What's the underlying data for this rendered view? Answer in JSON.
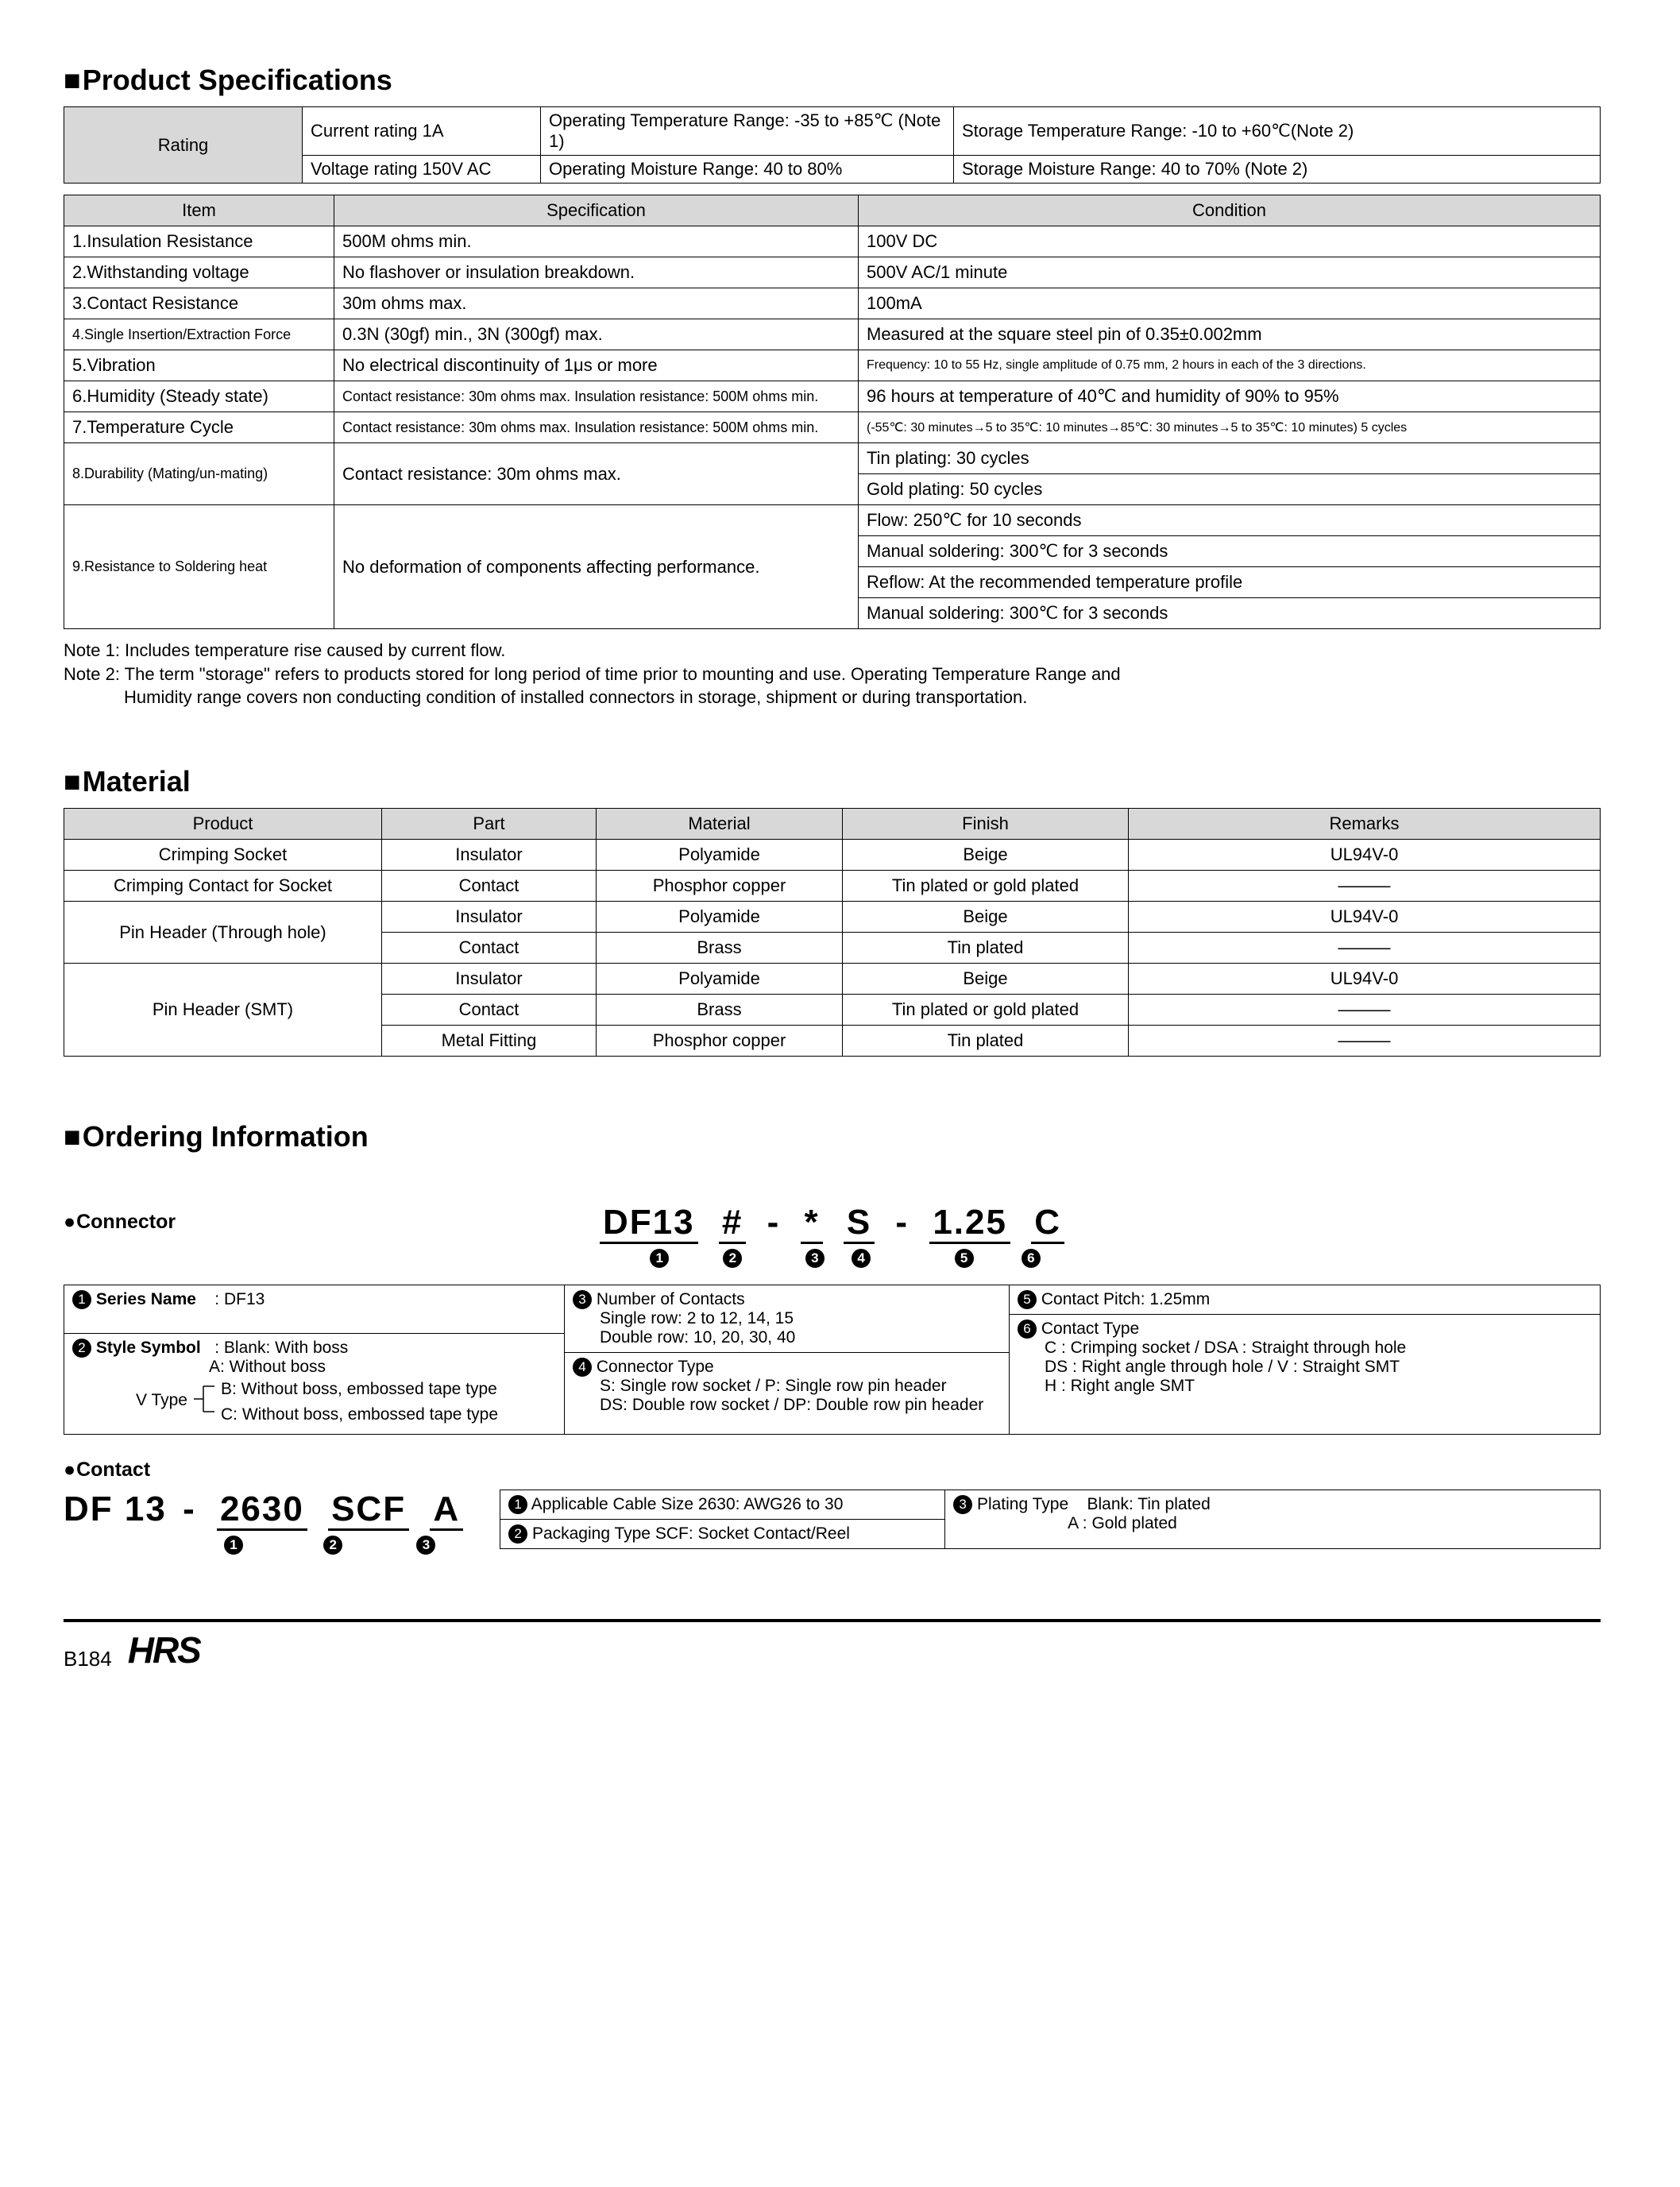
{
  "sections": {
    "spec_title": "Product Specifications",
    "material_title": "Material",
    "ordering_title": "Ordering Information",
    "connector_sub": "Connector",
    "contact_sub": "Contact"
  },
  "rating": {
    "label": "Rating",
    "r1a": "Current rating  1A",
    "r1b": "Operating Temperature Range: -35 to +85℃ (Note 1)",
    "r1c": "Storage Temperature Range: -10 to +60℃(Note 2)",
    "r2a": "Voltage rating  150V AC",
    "r2b": "Operating Moisture Range: 40 to 80%",
    "r2c": "Storage Moisture Range: 40 to 70%        (Note 2)"
  },
  "spec_headers": {
    "item": "Item",
    "spec": "Specification",
    "cond": "Condition"
  },
  "spec_rows": [
    {
      "item": "1.Insulation Resistance",
      "spec": "500M ohms min.",
      "cond": "100V DC"
    },
    {
      "item": "2.Withstanding voltage",
      "spec": "No flashover or insulation breakdown.",
      "cond": "500V AC/1 minute"
    },
    {
      "item": "3.Contact Resistance",
      "spec": "30m ohms max.",
      "cond": "100mA"
    },
    {
      "item": "4.Single Insertion/Extraction Force",
      "spec": "0.3N (30gf) min., 3N (300gf) max.",
      "cond": "Measured at the square steel pin of 0.35±0.002mm",
      "item_small": true
    },
    {
      "item": "5.Vibration",
      "spec": "No electrical discontinuity of 1μs or more",
      "cond": "Frequency: 10 to 55 Hz, single amplitude of 0.75 mm, 2 hours in each of the 3 directions.",
      "cond_small": true
    },
    {
      "item": "6.Humidity (Steady state)",
      "spec": "Contact resistance: 30m ohms max. Insulation resistance: 500M ohms min.",
      "cond": "96 hours at temperature of 40℃ and humidity of 90% to 95%",
      "spec_small": true
    },
    {
      "item": "7.Temperature Cycle",
      "spec": "Contact resistance: 30m ohms max. Insulation resistance: 500M ohms min.",
      "cond": "(-55℃: 30 minutes→5 to 35℃: 10 minutes→85℃: 30 minutes→5 to 35℃: 10 minutes) 5 cycles",
      "spec_small": true,
      "cond_small": true
    }
  ],
  "spec_row8": {
    "item": "8.Durability (Mating/un-mating)",
    "spec": "Contact resistance: 30m ohms max.",
    "cond1": "Tin plating: 30 cycles",
    "cond2": "Gold plating: 50 cycles"
  },
  "spec_row9": {
    "item": "9.Resistance to Soldering heat",
    "spec": "No deformation of components affecting performance.",
    "cond1": "Flow: 250℃ for 10 seconds",
    "cond2": "Manual soldering: 300℃ for 3 seconds",
    "cond3": "Reflow: At the recommended temperature profile",
    "cond4": "Manual soldering: 300℃ for 3 seconds"
  },
  "notes": {
    "n1": "Note 1: Includes temperature rise caused by current flow.",
    "n2a": "Note 2: The term \"storage\" refers to products stored for long period of time prior to mounting and use. Operating Temperature Range and",
    "n2b": "Humidity range covers non conducting condition of installed connectors in storage, shipment or during transportation."
  },
  "mat_headers": {
    "product": "Product",
    "part": "Part",
    "material": "Material",
    "finish": "Finish",
    "remarks": "Remarks"
  },
  "mat": {
    "r1": {
      "product": "Crimping Socket",
      "part": "Insulator",
      "material": "Polyamide",
      "finish": "Beige",
      "remarks": "UL94V-0"
    },
    "r2": {
      "product": "Crimping Contact for Socket",
      "part": "Contact",
      "material": "Phosphor copper",
      "finish": "Tin plated or gold plated",
      "remarks": "———"
    },
    "r3p": {
      "product": "Pin Header (Through hole)"
    },
    "r3a": {
      "part": "Insulator",
      "material": "Polyamide",
      "finish": "Beige",
      "remarks": "UL94V-0"
    },
    "r3b": {
      "part": "Contact",
      "material": "Brass",
      "finish": "Tin plated",
      "remarks": "———"
    },
    "r4p": {
      "product": "Pin Header (SMT)"
    },
    "r4a": {
      "part": "Insulator",
      "material": "Polyamide",
      "finish": "Beige",
      "remarks": "UL94V-0"
    },
    "r4b": {
      "part": "Contact",
      "material": "Brass",
      "finish": "Tin plated or gold plated",
      "remarks": "———"
    },
    "r4c": {
      "part": "Metal Fitting",
      "material": "Phosphor copper",
      "finish": "Tin plated",
      "remarks": "———"
    }
  },
  "conn_pn": {
    "s1": "DF13",
    "s2": "#",
    "s3": "*",
    "s4": "S",
    "s5": "1.25",
    "s6": "C"
  },
  "conn_legend": {
    "l1": "Series Name",
    "l1v": ": DF13",
    "l2": "Style Symbol",
    "l2v": ": Blank: With boss",
    "l2a": "A: Without boss",
    "l2vt": "V Type",
    "l2b": "B: Without boss, embossed tape type",
    "l2c": "C: Without boss, embossed tape type",
    "l3": "Number of Contacts",
    "l3a": "Single row: 2 to 12, 14, 15",
    "l3b": "Double row: 10, 20, 30, 40",
    "l4": "Connector Type",
    "l4a": "S: Single row socket / P: Single row pin header",
    "l4b": "DS: Double row socket / DP: Double row pin header",
    "l5": "Contact Pitch: 1.25mm",
    "l6": "Contact Type",
    "l6a": "C : Crimping socket / DSA : Straight through hole",
    "l6b": "DS : Right angle through hole / V : Straight SMT",
    "l6c": "H : Right angle SMT"
  },
  "contact_pn": {
    "s0": "DF 13",
    "s1": "2630",
    "s2": "SCF",
    "s3": "A"
  },
  "contact_legend": {
    "l1": "Applicable Cable Size  2630: AWG26 to 30",
    "l2": "Packaging Type  SCF: Socket Contact/Reel",
    "l3": "Plating Type",
    "l3a": "Blank: Tin plated",
    "l3b": "A    : Gold plated"
  },
  "footer": {
    "page": "B184",
    "logo": "HRS"
  }
}
